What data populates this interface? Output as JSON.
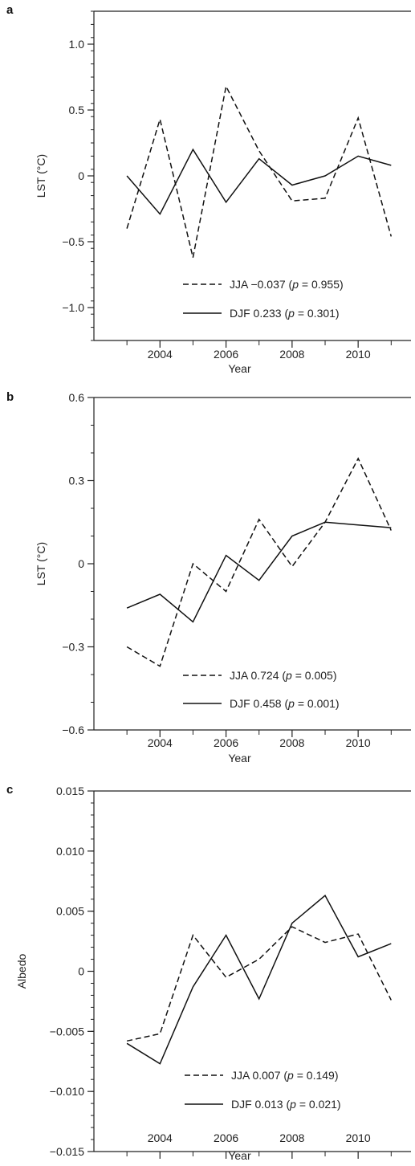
{
  "chart_data": [
    {
      "panel": "a",
      "type": "line",
      "xlabel": "Year",
      "ylabel": "LST (°C)",
      "ylim": [
        -1.25,
        1.25
      ],
      "xlim": [
        2002,
        2011.6
      ],
      "yticks": [
        -1.0,
        -0.5,
        0,
        0.5,
        1.0
      ],
      "ytick_labels": [
        "−1.0",
        "−0.5",
        "0",
        "0.5",
        "1.0"
      ],
      "yminor_step": 0.1,
      "xticks": [
        2004,
        2006,
        2008,
        2010
      ],
      "xtick_labels": [
        "2004",
        "2006",
        "2008",
        "2010"
      ],
      "xminor": [
        2003,
        2005,
        2007,
        2009,
        2011
      ],
      "x": [
        2003,
        2004,
        2005,
        2006,
        2007,
        2008,
        2009,
        2010,
        2011
      ],
      "series": [
        {
          "name": "JJA",
          "style": "dashed",
          "legend_value": "−0.037",
          "legend_p": "0.955",
          "values": [
            -0.4,
            0.43,
            -0.62,
            0.68,
            0.19,
            -0.19,
            -0.17,
            0.44,
            -0.46
          ]
        },
        {
          "name": "DJF",
          "style": "solid",
          "legend_value": "0.233",
          "legend_p": "0.301",
          "values": [
            0.0,
            -0.29,
            0.2,
            -0.2,
            0.13,
            -0.07,
            0.0,
            0.15,
            0.08
          ]
        }
      ],
      "grid": false,
      "legend_position": "bottom-right"
    },
    {
      "panel": "b",
      "type": "line",
      "xlabel": "Year",
      "ylabel": "LST (°C)",
      "ylim": [
        -0.6,
        0.6
      ],
      "xlim": [
        2002,
        2011.6
      ],
      "yticks": [
        -0.6,
        -0.3,
        0,
        0.3,
        0.6
      ],
      "ytick_labels": [
        "−0.6",
        "−0.3",
        "0",
        "0.3",
        "0.6"
      ],
      "yminor_step": 0.1,
      "xticks": [
        2004,
        2006,
        2008,
        2010
      ],
      "xtick_labels": [
        "2004",
        "2006",
        "2008",
        "2010"
      ],
      "xminor": [
        2003,
        2005,
        2007,
        2009,
        2011
      ],
      "x": [
        2003,
        2004,
        2005,
        2006,
        2007,
        2008,
        2009,
        2010,
        2011
      ],
      "series": [
        {
          "name": "JJA",
          "style": "dashed",
          "legend_value": "0.724",
          "legend_p": "0.005",
          "values": [
            -0.3,
            -0.37,
            0.0,
            -0.1,
            0.16,
            -0.01,
            0.15,
            0.38,
            0.12
          ]
        },
        {
          "name": "DJF",
          "style": "solid",
          "legend_value": "0.458",
          "legend_p": "0.001",
          "values": [
            -0.16,
            -0.11,
            -0.21,
            0.03,
            -0.06,
            0.1,
            0.15,
            0.14,
            0.13
          ]
        }
      ],
      "grid": false,
      "legend_position": "bottom-right"
    },
    {
      "panel": "c",
      "type": "line",
      "xlabel": "Year",
      "ylabel": "Albedo",
      "ylim": [
        -0.015,
        0.015
      ],
      "xlim": [
        2002,
        2011.6
      ],
      "yticks": [
        -0.015,
        -0.01,
        -0.005,
        0,
        0.005,
        0.01,
        0.015
      ],
      "ytick_labels": [
        "−0.015",
        "−0.010",
        "−0.005",
        "0",
        "0.005",
        "0.010",
        "0.015"
      ],
      "yminor_step": 0.001,
      "xticks": [
        2004,
        2006,
        2008,
        2010
      ],
      "xtick_labels": [
        "2004",
        "2006",
        "2008",
        "2010"
      ],
      "xminor": [
        2003,
        2005,
        2007,
        2009,
        2011
      ],
      "x": [
        2003,
        2004,
        2005,
        2006,
        2007,
        2008,
        2009,
        2010,
        2011
      ],
      "series": [
        {
          "name": "JJA",
          "style": "dashed",
          "legend_value": "0.007",
          "legend_p": "0.149",
          "values": [
            -0.0058,
            -0.0052,
            0.003,
            -0.0005,
            0.001,
            0.0037,
            0.0024,
            0.0031,
            -0.0024
          ]
        },
        {
          "name": "DJF",
          "style": "solid",
          "legend_value": "0.013",
          "legend_p": "0.021",
          "values": [
            -0.006,
            -0.0077,
            -0.0013,
            0.003,
            -0.0023,
            0.004,
            0.0063,
            0.0012,
            0.0023
          ]
        }
      ],
      "grid": false,
      "legend_position": "bottom-right"
    }
  ]
}
